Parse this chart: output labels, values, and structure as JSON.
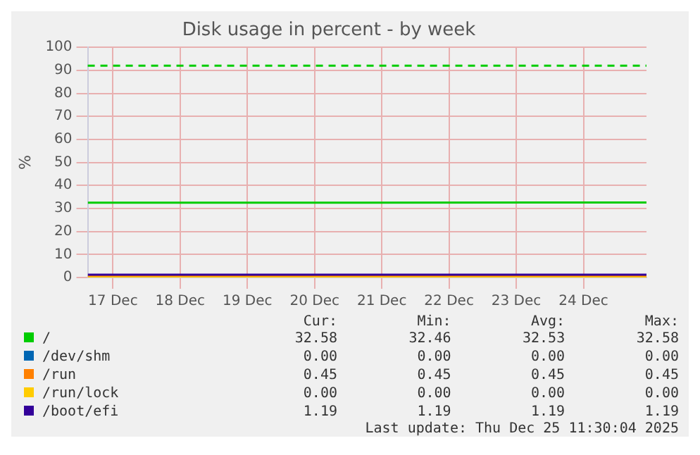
{
  "chart_data": {
    "type": "line",
    "title": "Disk usage in percent - by week",
    "ylabel": "%",
    "x": [
      "2025-12-17T03:00",
      "2025-12-25T10:30"
    ],
    "series": [
      {
        "name": "/",
        "color": "#00cc00",
        "values": [
          32.5,
          32.6
        ]
      },
      {
        "name": "/dev/shm",
        "color": "#0066b3",
        "values": [
          null,
          null
        ]
      },
      {
        "name": "/run",
        "color": "#ff8000",
        "values": [
          0.5,
          0.5
        ]
      },
      {
        "name": "/run/lock",
        "color": "#ffcc00",
        "values": [
          0,
          0
        ]
      },
      {
        "name": "/boot/efi",
        "color": "#330099",
        "values": [
          1.2,
          1.2
        ]
      }
    ],
    "xlim": [
      "2025-12-17T03:00",
      "2025-12-25T10:30"
    ],
    "xticks": [
      {
        "value": "2025-12-17T12:00",
        "label": "17 Dec"
      },
      {
        "value": "2025-12-18T12:00",
        "label": "18 Dec"
      },
      {
        "value": "2025-12-19T12:00",
        "label": "19 Dec"
      },
      {
        "value": "2025-12-20T12:00",
        "label": "20 Dec"
      },
      {
        "value": "2025-12-21T12:00",
        "label": "21 Dec"
      },
      {
        "value": "2025-12-22T12:00",
        "label": "22 Dec"
      },
      {
        "value": "2025-12-23T12:00",
        "label": "23 Dec"
      },
      {
        "value": "2025-12-24T12:00",
        "label": "24 Dec"
      }
    ],
    "ylim": [
      0,
      100
    ],
    "yticks": [
      0,
      10,
      20,
      30,
      40,
      50,
      60,
      70,
      80,
      90,
      100
    ],
    "ref_lines": [
      {
        "axis": "y",
        "value": 92,
        "color": "#00cc00",
        "line_style": "dashed"
      }
    ],
    "grid": true,
    "legend": "bottom",
    "marker": "none",
    "line_style": "solid",
    "annotations": [
      "Cur:",
      "Min:",
      "Avg:",
      "Max:",
      "32.58",
      "32.46",
      "32.53",
      "32.58",
      "0.00",
      "0.00",
      "0.00",
      "0.00",
      "0.45",
      "0.45",
      "0.45",
      "0.45",
      "0.00",
      "0.00",
      "0.00",
      "0.00",
      "1.19",
      "1.19",
      "1.19",
      "1.19",
      "Last update: Thu Dec 25 11:30:04 2025"
    ]
  }
}
